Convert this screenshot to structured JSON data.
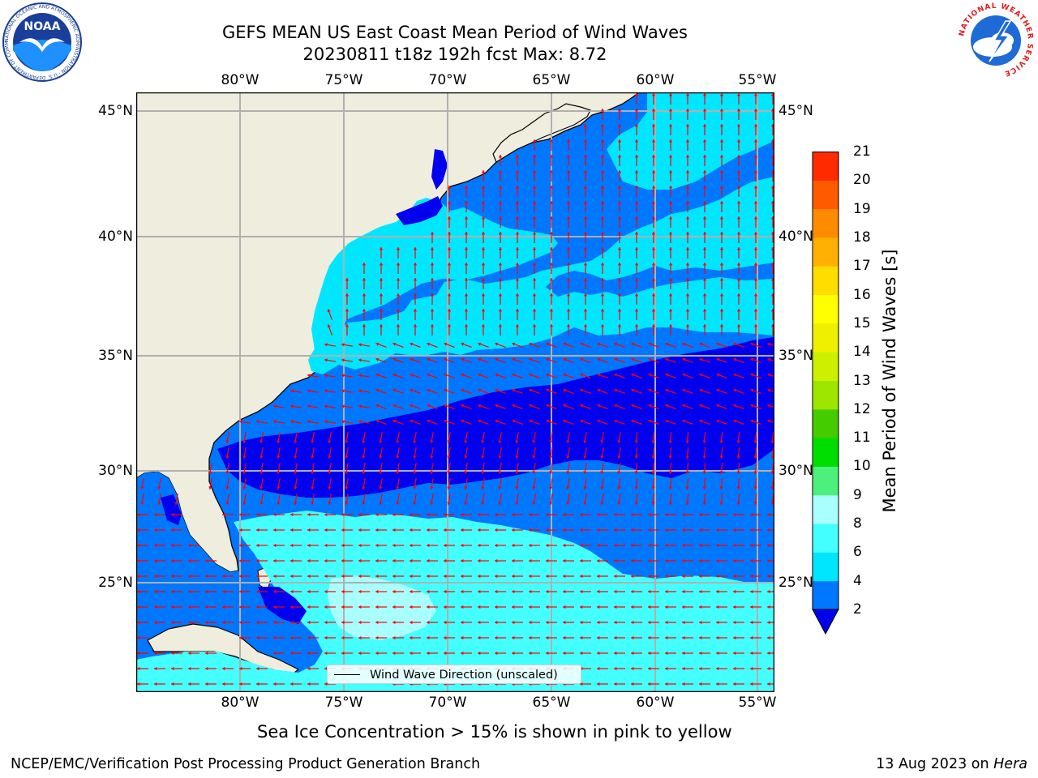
{
  "title": {
    "line1": "GEFS MEAN US East Coast Mean Period of Wind Waves",
    "line2": "20230811 t18z 192h fcst   Max: 8.72"
  },
  "axes": {
    "lon_top": [
      "80°W",
      "75°W",
      "70°W",
      "65°W",
      "60°W",
      "55°W"
    ],
    "lon_bottom": [
      "80°W",
      "75°W",
      "70°W",
      "65°W",
      "60°W",
      "55°W"
    ],
    "lat_left": [
      "45°N",
      "40°N",
      "35°N",
      "30°N",
      "25°N"
    ],
    "lat_right": [
      "45°N",
      "40°N",
      "35°N",
      "30°N",
      "25°N"
    ]
  },
  "map": {
    "lon_range": [
      -85,
      -54.6
    ],
    "lat_range": [
      20.5,
      45.8
    ],
    "land_color": "#efedde",
    "coastline_color": "#000000",
    "grid_color": "#b0b0b0",
    "arrow_color": "#ff0000"
  },
  "legend": {
    "label": "Wind Wave Direction (unscaled)"
  },
  "colorbar": {
    "label": "Mean Period of Wind Waves [s]",
    "ticks": [
      "2",
      "4",
      "6",
      "8",
      "9",
      "10",
      "11",
      "12",
      "13",
      "14",
      "15",
      "16",
      "17",
      "18",
      "19",
      "20",
      "21"
    ],
    "colors": [
      "#0000ee",
      "#0077ff",
      "#00e6ff",
      "#44ffff",
      "#a8fffe",
      "#4df07a",
      "#00dd00",
      "#44cc00",
      "#9ee600",
      "#ccf000",
      "#eef000",
      "#ffff00",
      "#ffdd00",
      "#ffb000",
      "#ff8c00",
      "#ff5a00",
      "#ff2a00",
      "#ff0000"
    ],
    "extend_min": "#0000ee"
  },
  "subtitle": "Sea Ice Concentration > 15% is shown in pink to yellow",
  "footer": {
    "left": "NCEP/EMC/Verification Post Processing Product Generation Branch",
    "right_prefix": "13 Aug 2023 on ",
    "right_machine": "Hera"
  },
  "logos": {
    "noaa": {
      "text": "NOAA",
      "ring": "NATIONAL OCEANIC AND ATMOSPHERIC ADMINISTRATION · U.S. DEPARTMENT OF COMMERCE"
    },
    "nws": {
      "ring": "NATIONAL WEATHER SERVICE"
    }
  }
}
